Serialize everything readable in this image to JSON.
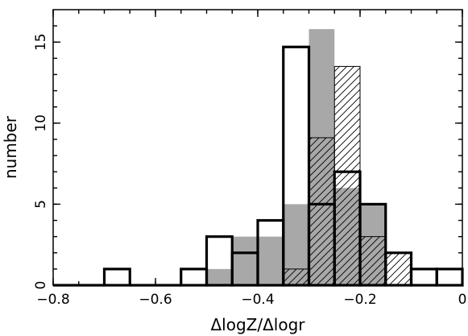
{
  "chart_data": {
    "type": "bar",
    "subtype": "overlaid-step-histograms",
    "xlabel": "ΔlogZ/Δlogr",
    "ylabel": "number",
    "xlim": [
      -0.8,
      0.0
    ],
    "ylim": [
      0,
      17
    ],
    "x_ticks": [
      -0.8,
      -0.6,
      -0.4,
      -0.2,
      0
    ],
    "x_tick_labels": [
      "−0.8",
      "−0.6",
      "−0.4",
      "−0.2",
      "0"
    ],
    "y_ticks": [
      0,
      5,
      10,
      15
    ],
    "y_tick_labels": [
      "0",
      "5",
      "10",
      "15"
    ],
    "grid": false,
    "legend": "none",
    "bin_width": 0.05,
    "series": [
      {
        "style": "gray-filled",
        "color": "#a8a8a8",
        "bins": [
          {
            "x0": -0.5,
            "x1": -0.45,
            "count": 1
          },
          {
            "x0": -0.45,
            "x1": -0.4,
            "count": 3
          },
          {
            "x0": -0.4,
            "x1": -0.35,
            "count": 3
          },
          {
            "x0": -0.35,
            "x1": -0.3,
            "count": 5
          },
          {
            "x0": -0.3,
            "x1": -0.25,
            "count": 15.8
          },
          {
            "x0": -0.25,
            "x1": -0.2,
            "count": 6
          },
          {
            "x0": -0.2,
            "x1": -0.15,
            "count": 5
          }
        ]
      },
      {
        "style": "hatched-outline",
        "color": "#000000",
        "bins": [
          {
            "x0": -0.35,
            "x1": -0.3,
            "count": 1
          },
          {
            "x0": -0.3,
            "x1": -0.25,
            "count": 9.1
          },
          {
            "x0": -0.25,
            "x1": -0.2,
            "count": 13.5
          },
          {
            "x0": -0.2,
            "x1": -0.15,
            "count": 3
          },
          {
            "x0": -0.15,
            "x1": -0.1,
            "count": 2
          }
        ]
      },
      {
        "style": "thick-outline",
        "color": "#000000",
        "bins": [
          {
            "x0": -0.8,
            "x1": -0.75,
            "count": 0
          },
          {
            "x0": -0.75,
            "x1": -0.7,
            "count": 0
          },
          {
            "x0": -0.7,
            "x1": -0.65,
            "count": 1
          },
          {
            "x0": -0.65,
            "x1": -0.6,
            "count": 0
          },
          {
            "x0": -0.6,
            "x1": -0.55,
            "count": 0
          },
          {
            "x0": -0.55,
            "x1": -0.5,
            "count": 1
          },
          {
            "x0": -0.5,
            "x1": -0.45,
            "count": 3
          },
          {
            "x0": -0.45,
            "x1": -0.4,
            "count": 2
          },
          {
            "x0": -0.4,
            "x1": -0.35,
            "count": 4
          },
          {
            "x0": -0.35,
            "x1": -0.3,
            "count": 14.7
          },
          {
            "x0": -0.3,
            "x1": -0.25,
            "count": 5
          },
          {
            "x0": -0.25,
            "x1": -0.2,
            "count": 7
          },
          {
            "x0": -0.2,
            "x1": -0.15,
            "count": 5
          },
          {
            "x0": -0.15,
            "x1": -0.1,
            "count": 2
          },
          {
            "x0": -0.1,
            "x1": -0.05,
            "count": 1
          },
          {
            "x0": -0.05,
            "x1": 0.0,
            "count": 1
          }
        ]
      }
    ]
  }
}
